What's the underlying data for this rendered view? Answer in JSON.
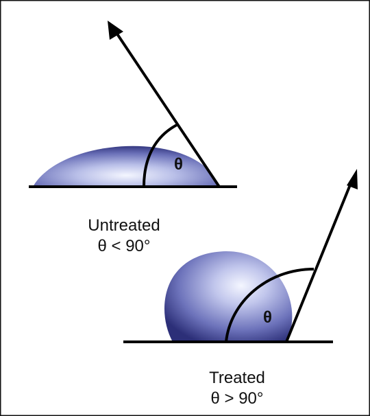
{
  "colors": {
    "line": "#000000",
    "droplet_highlight": "#f4f6ff",
    "droplet_mid": "#9aa2d8",
    "droplet_shadow": "#2c2f78",
    "frame": "#111111"
  },
  "untreated": {
    "angle_symbol": "θ",
    "title": "Untreated",
    "condition": "θ < 90°"
  },
  "treated": {
    "angle_symbol": "θ",
    "title": "Treated",
    "condition": "θ > 90°"
  }
}
